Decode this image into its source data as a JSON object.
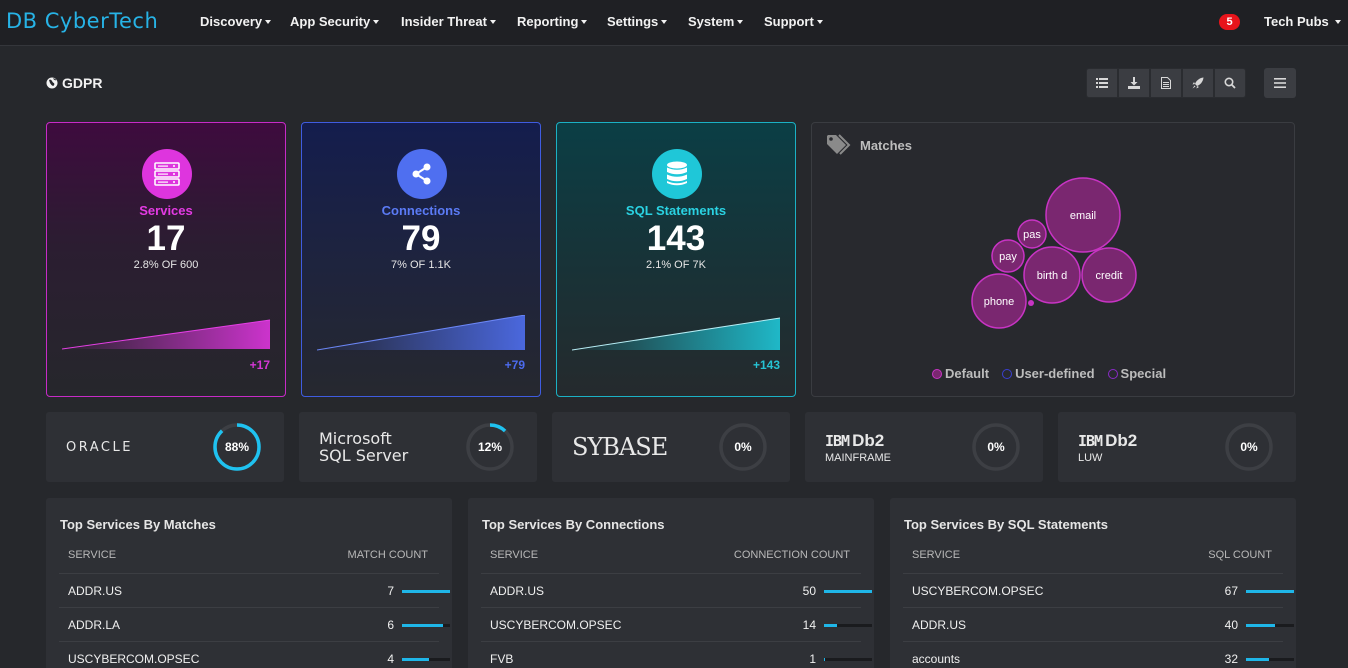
{
  "app": {
    "logo": "DB CyberTech",
    "nav": [
      "Discovery",
      "App Security",
      "Insider Threat",
      "Reporting",
      "Settings",
      "System",
      "Support"
    ],
    "notifications": "5",
    "user": "Tech Pubs"
  },
  "page": {
    "title": "GDPR",
    "toolbar_icons": [
      "list-icon",
      "download-icon",
      "document-icon",
      "rocket-icon",
      "search-icon"
    ],
    "menu_icon": "hamburger-menu-icon"
  },
  "stats": {
    "services": {
      "label": "Services",
      "value": "17",
      "sub": "2.8% OF 600",
      "delta": "+17",
      "color": "#de35de"
    },
    "connections": {
      "label": "Connections",
      "value": "79",
      "sub": "7% OF 1.1K",
      "delta": "+79",
      "color": "#4f6ff0"
    },
    "sql": {
      "label": "SQL Statements",
      "value": "143",
      "sub": "2.1% OF 7K",
      "delta": "+143",
      "color": "#1fc7d8"
    }
  },
  "matches": {
    "title": "Matches",
    "bubbles": [
      "email",
      "pas",
      "pay",
      "birth d",
      "credit",
      "phone"
    ],
    "legend": [
      {
        "label": "Default",
        "color": "#c02fbf"
      },
      {
        "label": "User-defined",
        "color": "#3a3fd1"
      },
      {
        "label": "Special",
        "color": "#8a2bc7"
      }
    ]
  },
  "databases": [
    {
      "name": "ORACLE",
      "percent": "88%",
      "fraction": 0.88
    },
    {
      "name": "Microsoft SQL Server",
      "line1": "Microsoft",
      "line2": "SQL Server",
      "percent": "12%",
      "fraction": 0.12
    },
    {
      "name": "SYBASE",
      "percent": "0%",
      "fraction": 0
    },
    {
      "name": "IBM Db2 MAINFRAME",
      "brand": "IBM",
      "product": "Db2",
      "sub": "MAINFRAME",
      "percent": "0%",
      "fraction": 0
    },
    {
      "name": "IBM Db2 LUW",
      "brand": "IBM",
      "product": "Db2",
      "sub": "LUW",
      "percent": "0%",
      "fraction": 0
    }
  ],
  "tables": [
    {
      "title": "Top Services By Matches",
      "col1": "SERVICE",
      "col2": "MATCH COUNT",
      "rows": [
        {
          "name": "ADDR.US",
          "value": "7",
          "fraction": 1.0
        },
        {
          "name": "ADDR.LA",
          "value": "6",
          "fraction": 0.86
        },
        {
          "name": "USCYBERCOM.OPSEC",
          "value": "4",
          "fraction": 0.57
        }
      ]
    },
    {
      "title": "Top Services By Connections",
      "col1": "SERVICE",
      "col2": "CONNECTION COUNT",
      "rows": [
        {
          "name": "ADDR.US",
          "value": "50",
          "fraction": 1.0
        },
        {
          "name": "USCYBERCOM.OPSEC",
          "value": "14",
          "fraction": 0.28
        },
        {
          "name": "FVB",
          "value": "1",
          "fraction": 0.02
        }
      ]
    },
    {
      "title": "Top Services By SQL Statements",
      "col1": "SERVICE",
      "col2": "SQL COUNT",
      "rows": [
        {
          "name": "USCYBERCOM.OPSEC",
          "value": "67",
          "fraction": 1.0
        },
        {
          "name": "ADDR.US",
          "value": "40",
          "fraction": 0.6
        },
        {
          "name": "accounts",
          "value": "32",
          "fraction": 0.48
        }
      ]
    }
  ]
}
